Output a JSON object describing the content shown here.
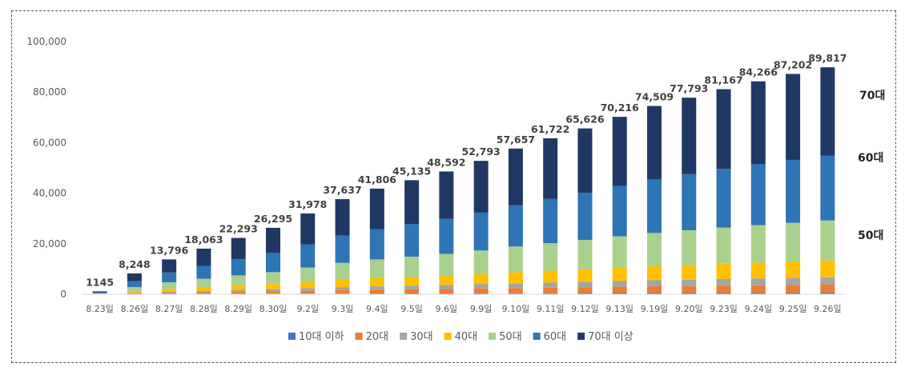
{
  "chart_data": {
    "type": "bar",
    "stacked": true,
    "categories": [
      "8.23일",
      "8.26일",
      "8.27일",
      "8.28일",
      "8.29일",
      "8.30일",
      "9.2일",
      "9.3일",
      "9.4일",
      "9.5일",
      "9.6일",
      "9.9일",
      "9.10일",
      "9.11일",
      "9.12일",
      "9.13일",
      "9.19일",
      "9.20일",
      "9.23일",
      "9.24일",
      "9.25일",
      "9.26일"
    ],
    "totals_labels": [
      "1145",
      "8,248",
      "13,796",
      "18,063",
      "22,293",
      "26,295",
      "31,978",
      "37,637",
      "41,806",
      "45,135",
      "48,592",
      "52,793",
      "57,657",
      "61,722",
      "65,626",
      "70,216",
      "74,509",
      "77,793",
      "81,167",
      "84,266",
      "87,202",
      "89,817"
    ],
    "totals": [
      1145,
      8248,
      13796,
      18063,
      22293,
      26295,
      31978,
      37637,
      41806,
      45135,
      48592,
      52793,
      57657,
      61722,
      65626,
      70216,
      74509,
      77793,
      81167,
      84266,
      87202,
      89817
    ],
    "series": [
      {
        "name": "10대 이하",
        "color": "#4472c4",
        "values": [
          10,
          60,
          100,
          130,
          160,
          190,
          220,
          260,
          290,
          310,
          330,
          360,
          390,
          420,
          440,
          470,
          500,
          520,
          540,
          560,
          580,
          600
        ]
      },
      {
        "name": "20대",
        "color": "#ed7d31",
        "values": [
          40,
          300,
          500,
          650,
          800,
          950,
          1150,
          1350,
          1500,
          1600,
          1750,
          1900,
          2050,
          2200,
          2350,
          2500,
          2650,
          2750,
          2900,
          3000,
          3100,
          3200
        ]
      },
      {
        "name": "30대",
        "color": "#a5a5a5",
        "values": [
          40,
          250,
          450,
          600,
          750,
          850,
          1050,
          1200,
          1350,
          1450,
          1550,
          1700,
          1850,
          2000,
          2100,
          2250,
          2400,
          2500,
          2600,
          2700,
          2800,
          2900
        ]
      },
      {
        "name": "40대",
        "color": "#ffc000",
        "values": [
          90,
          700,
          1100,
          1450,
          1750,
          2050,
          2450,
          2900,
          3250,
          3500,
          3750,
          4050,
          4400,
          4700,
          5000,
          5300,
          5600,
          5850,
          6050,
          6300,
          6500,
          6700
        ]
      },
      {
        "name": "50대",
        "color": "#a9d18e",
        "values": [
          200,
          1550,
          2550,
          3300,
          4000,
          4700,
          5700,
          6700,
          7400,
          8000,
          8600,
          9300,
          10200,
          10900,
          11600,
          12400,
          13100,
          13700,
          14300,
          14800,
          15300,
          15800
        ]
      },
      {
        "name": "60대",
        "color": "#2e75b6",
        "values": [
          320,
          2300,
          3900,
          5100,
          6400,
          7600,
          9200,
          10800,
          12000,
          12900,
          13900,
          15000,
          16400,
          17500,
          18600,
          19900,
          21200,
          22200,
          23200,
          24100,
          24900,
          25700
        ]
      },
      {
        "name": "70대 이상",
        "color": "#203864",
        "values": [
          445,
          3088,
          5196,
          6833,
          8433,
          9955,
          12208,
          14427,
          16016,
          17375,
          18712,
          20483,
          22367,
          24002,
          25536,
          27396,
          29059,
          30273,
          31577,
          32806,
          34022,
          34917
        ]
      }
    ],
    "ylim": [
      0,
      100000
    ],
    "yticks": [
      "0",
      "20,000",
      "40,000",
      "60,000",
      "80,000",
      "100,000"
    ],
    "ytick_values": [
      0,
      20000,
      40000,
      60000,
      80000,
      100000
    ],
    "grid": false,
    "legend_position": "bottom",
    "side_annotations": [
      "70대",
      "60대",
      "50대"
    ]
  }
}
